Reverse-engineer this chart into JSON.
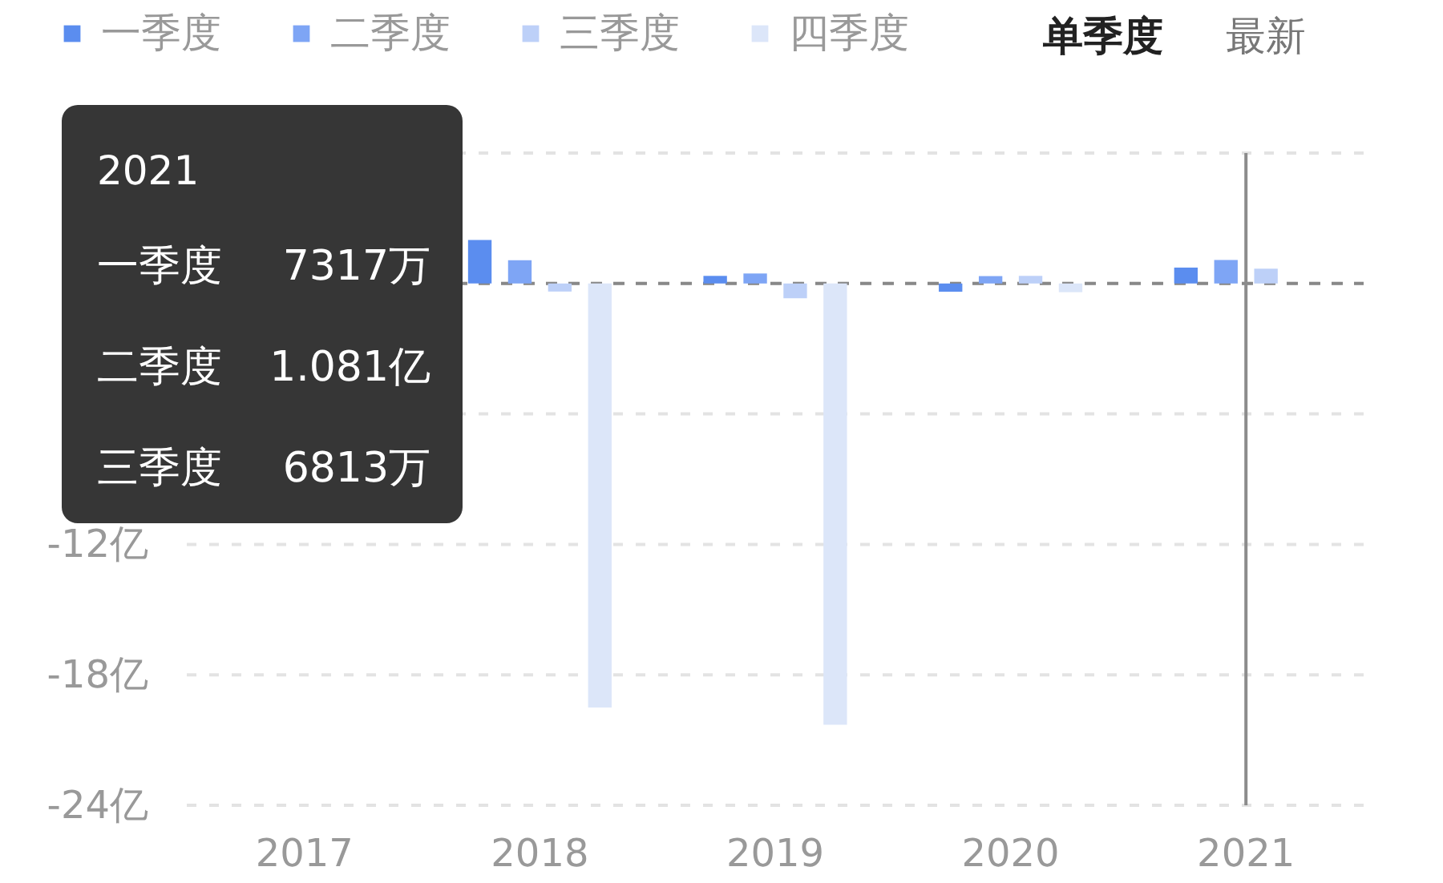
{
  "chart_data": {
    "type": "bar",
    "categories": [
      "2017",
      "2018",
      "2019",
      "2020",
      "2021"
    ],
    "series": [
      {
        "name": "一季度",
        "color": "#5b8def",
        "values": [
          null,
          2.0,
          0.35,
          -0.38,
          0.7317
        ]
      },
      {
        "name": "二季度",
        "color": "#7ea5f5",
        "values": [
          null,
          1.07,
          0.46,
          0.34,
          1.081
        ]
      },
      {
        "name": "三季度",
        "color": "#bdd0f8",
        "values": [
          null,
          -0.37,
          -0.68,
          0.35,
          0.6813
        ]
      },
      {
        "name": "四季度",
        "color": "#dce6f9",
        "values": [
          null,
          -19.5,
          -20.3,
          -0.4,
          null
        ]
      }
    ],
    "ylim": [
      -24,
      6
    ],
    "yticks": [
      {
        "value": 6,
        "label": null
      },
      {
        "value": 0,
        "label": null
      },
      {
        "value": -6,
        "label": null
      },
      {
        "value": -12,
        "label": "-12亿"
      },
      {
        "value": -18,
        "label": "-18亿"
      },
      {
        "value": -24,
        "label": "-24亿"
      }
    ],
    "grid": "y",
    "legend": "top left",
    "ref_lines": [
      {
        "axis": "y",
        "value": 0,
        "color": "#888888",
        "line_style": "dashed"
      },
      {
        "axis": "x",
        "value": "2021",
        "color": "#8c8c8c"
      }
    ],
    "annotations": [
      "单季度",
      "最新",
      "2021",
      "一季度 7317万",
      "二季度 1.081亿",
      "三季度 6813万"
    ]
  }
}
